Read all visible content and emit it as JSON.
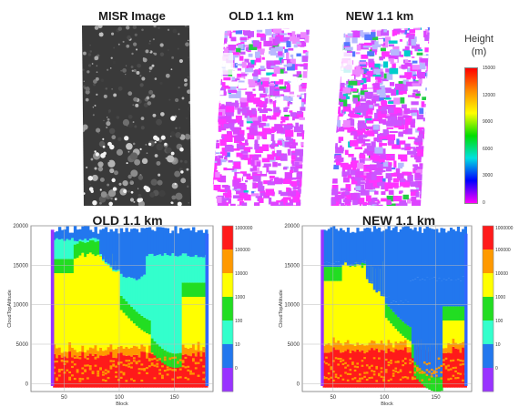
{
  "titles": {
    "misr": "MISR Image",
    "old_map": "OLD 1.1 km",
    "new_map": "NEW 1.1 km",
    "old_hist": "OLD 1.1 km",
    "new_hist": "NEW 1.1 km"
  },
  "height_legend": {
    "label_line1": "Height",
    "label_line2": "(m)",
    "ticks": [
      "15000",
      "12000",
      "9000",
      "6000",
      "3000",
      "0"
    ],
    "colors": [
      "#ff0000",
      "#ff8c00",
      "#ffff00",
      "#00dd00",
      "#00e0e0",
      "#0000ff",
      "#ff00ff"
    ]
  },
  "chart_data": [
    {
      "type": "heatmap",
      "title": "OLD 1.1 km",
      "xlabel": "Block",
      "ylabel": "CloudTopAltitude",
      "xticks": [
        "50",
        "100",
        "150"
      ],
      "yticks": [
        "20000",
        "15000",
        "10000",
        "5000",
        "0"
      ],
      "xlim": [
        20,
        185
      ],
      "ylim": [
        -1000,
        20000
      ],
      "colorbar": {
        "ticks": [
          "1000000",
          "100000",
          "10000",
          "1000",
          "100",
          "10",
          "0"
        ],
        "colors": [
          "#ff1a1a",
          "#ff9900",
          "#ffff00",
          "#22dd22",
          "#33ffcc",
          "#2277ee",
          "#9933ff"
        ]
      }
    },
    {
      "type": "heatmap",
      "title": "NEW 1.1 km",
      "xlabel": "Block",
      "ylabel": "CloudTopAltitude",
      "xticks": [
        "50",
        "100",
        "150"
      ],
      "yticks": [
        "20000",
        "15000",
        "10000",
        "5000",
        "0"
      ],
      "xlim": [
        20,
        185
      ],
      "ylim": [
        -1000,
        20000
      ],
      "colorbar": {
        "ticks": [
          "1000000",
          "100000",
          "10000",
          "1000",
          "100",
          "10",
          "0"
        ],
        "colors": [
          "#ff1a1a",
          "#ff9900",
          "#ffff00",
          "#22dd22",
          "#33ffcc",
          "#2277ee",
          "#9933ff"
        ]
      }
    }
  ]
}
